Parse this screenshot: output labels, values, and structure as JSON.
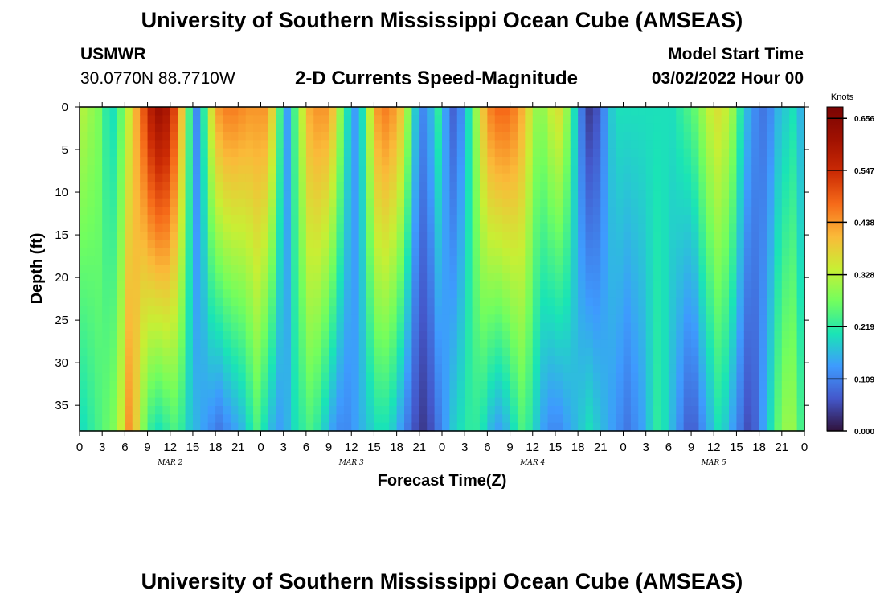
{
  "header": {
    "title": "University of Southern Mississippi Ocean Cube (AMSEAS)",
    "station_id": "USMWR",
    "coordinates": "30.0770N  88.7710W",
    "model_start_label": "Model Start Time",
    "model_start_value": "03/02/2022 Hour 00"
  },
  "footer": {
    "title": "University of Southern Mississippi Ocean Cube (AMSEAS)"
  },
  "chart_data": {
    "type": "heatmap",
    "title": "2-D Currents Speed-Magnitude",
    "xlabel": "Forecast Time(Z)",
    "ylabel": "Depth (ft)",
    "x_range_hours": [
      0,
      96
    ],
    "y_range_ft": [
      0,
      38
    ],
    "x_tick_labels": [
      "0",
      "3",
      "6",
      "9",
      "12",
      "15",
      "18",
      "21",
      "0",
      "3",
      "6",
      "9",
      "12",
      "15",
      "18",
      "21",
      "0",
      "3",
      "6",
      "9",
      "12",
      "15",
      "18",
      "21",
      "0",
      "3",
      "6",
      "9",
      "12",
      "15",
      "18",
      "21",
      "0"
    ],
    "x_tick_hours": [
      0,
      3,
      6,
      9,
      12,
      15,
      18,
      21,
      24,
      27,
      30,
      33,
      36,
      39,
      42,
      45,
      48,
      51,
      54,
      57,
      60,
      63,
      66,
      69,
      72,
      75,
      78,
      81,
      84,
      87,
      90,
      93,
      96
    ],
    "day_labels": [
      {
        "label": "MAR 2",
        "hour": 12
      },
      {
        "label": "MAR 3",
        "hour": 36
      },
      {
        "label": "MAR 4",
        "hour": 60
      },
      {
        "label": "MAR 5",
        "hour": 84
      }
    ],
    "y_ticks": [
      0,
      5,
      10,
      15,
      20,
      25,
      30,
      35
    ],
    "y_tick_labels": [
      "0",
      "5",
      "10",
      "15",
      "20",
      "25",
      "30",
      "35"
    ],
    "colorbar": {
      "unit": "Knots",
      "min": 0.0,
      "max": 0.68,
      "tick_values": [
        0.0,
        0.109,
        0.219,
        0.328,
        0.438,
        0.547,
        0.656
      ],
      "tick_labels": [
        "0.000",
        "0.109",
        "0.219",
        "0.328",
        "0.438",
        "0.547",
        "0.656"
      ]
    },
    "grid_resolution": {
      "hours_step": 1,
      "depth_levels": 39
    },
    "surface_speed_by_hour": [
      0.32,
      0.3,
      0.28,
      0.22,
      0.2,
      0.26,
      0.34,
      0.42,
      0.5,
      0.58,
      0.62,
      0.6,
      0.52,
      0.4,
      0.24,
      0.12,
      0.22,
      0.36,
      0.44,
      0.46,
      0.46,
      0.45,
      0.44,
      0.44,
      0.44,
      0.38,
      0.24,
      0.14,
      0.24,
      0.34,
      0.42,
      0.44,
      0.44,
      0.4,
      0.3,
      0.2,
      0.14,
      0.2,
      0.34,
      0.44,
      0.46,
      0.44,
      0.4,
      0.3,
      0.18,
      0.12,
      0.16,
      0.22,
      0.14,
      0.08,
      0.12,
      0.2,
      0.3,
      0.4,
      0.46,
      0.48,
      0.48,
      0.46,
      0.42,
      0.36,
      0.3,
      0.3,
      0.34,
      0.36,
      0.3,
      0.2,
      0.1,
      0.04,
      0.06,
      0.12,
      0.18,
      0.2,
      0.2,
      0.2,
      0.2,
      0.2,
      0.2,
      0.2,
      0.2,
      0.22,
      0.24,
      0.26,
      0.3,
      0.34,
      0.36,
      0.34,
      0.3,
      0.22,
      0.16,
      0.12,
      0.1,
      0.12,
      0.16,
      0.18,
      0.2,
      0.18,
      0.16
    ],
    "bottom_speed_by_hour": [
      0.2,
      0.22,
      0.24,
      0.26,
      0.28,
      0.34,
      0.44,
      0.38,
      0.28,
      0.22,
      0.2,
      0.22,
      0.24,
      0.22,
      0.18,
      0.16,
      0.14,
      0.12,
      0.1,
      0.12,
      0.14,
      0.16,
      0.2,
      0.24,
      0.2,
      0.16,
      0.14,
      0.16,
      0.2,
      0.22,
      0.24,
      0.22,
      0.18,
      0.14,
      0.12,
      0.12,
      0.14,
      0.16,
      0.18,
      0.2,
      0.2,
      0.18,
      0.14,
      0.1,
      0.06,
      0.04,
      0.06,
      0.1,
      0.14,
      0.18,
      0.2,
      0.22,
      0.22,
      0.2,
      0.16,
      0.14,
      0.16,
      0.2,
      0.24,
      0.22,
      0.18,
      0.14,
      0.12,
      0.12,
      0.14,
      0.16,
      0.18,
      0.2,
      0.18,
      0.16,
      0.14,
      0.12,
      0.1,
      0.12,
      0.14,
      0.18,
      0.22,
      0.2,
      0.16,
      0.12,
      0.08,
      0.08,
      0.12,
      0.16,
      0.2,
      0.18,
      0.14,
      0.1,
      0.06,
      0.08,
      0.14,
      0.2,
      0.26,
      0.3,
      0.3,
      0.28,
      0.24
    ]
  }
}
